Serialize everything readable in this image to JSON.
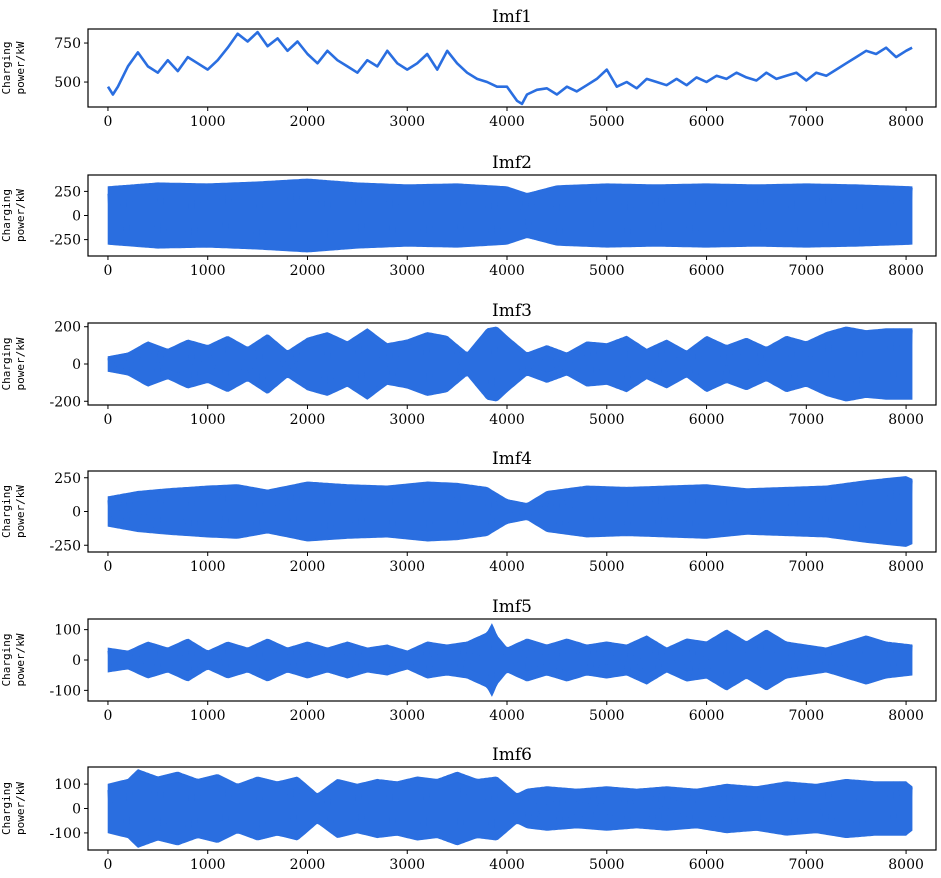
{
  "figure": {
    "line_color": "#2a6ee0"
  },
  "chart_data": [
    {
      "type": "line",
      "title": "Imf1",
      "ylabel_lines": [
        "Charging",
        "power/kW"
      ],
      "xlim": [
        -200,
        8300
      ],
      "ylim": [
        340,
        840
      ],
      "xticks": [
        0,
        1000,
        2000,
        3000,
        4000,
        5000,
        6000,
        7000,
        8000
      ],
      "yticks": [
        500,
        750
      ],
      "series": [
        {
          "x": [
            0,
            50,
            100,
            200,
            300,
            400,
            500,
            600,
            700,
            800,
            900,
            1000,
            1100,
            1200,
            1300,
            1400,
            1500,
            1600,
            1700,
            1800,
            1900,
            2000,
            2100,
            2200,
            2300,
            2400,
            2500,
            2600,
            2700,
            2800,
            2900,
            3000,
            3100,
            3200,
            3300,
            3400,
            3500,
            3600,
            3700,
            3800,
            3900,
            4000,
            4100,
            4150,
            4200,
            4300,
            4400,
            4500,
            4600,
            4700,
            4800,
            4900,
            5000,
            5100,
            5200,
            5300,
            5400,
            5500,
            5600,
            5700,
            5800,
            5900,
            6000,
            6100,
            6200,
            6300,
            6400,
            6500,
            6600,
            6700,
            6800,
            6900,
            7000,
            7100,
            7200,
            7300,
            7400,
            7500,
            7600,
            7700,
            7800,
            7900,
            8000,
            8060
          ],
          "y": [
            470,
            420,
            470,
            600,
            690,
            600,
            560,
            640,
            570,
            660,
            620,
            580,
            640,
            720,
            810,
            760,
            820,
            730,
            780,
            700,
            760,
            680,
            620,
            700,
            640,
            600,
            560,
            640,
            600,
            700,
            620,
            580,
            620,
            680,
            580,
            700,
            620,
            560,
            520,
            500,
            470,
            470,
            380,
            360,
            420,
            450,
            460,
            420,
            470,
            440,
            480,
            520,
            580,
            470,
            500,
            460,
            520,
            500,
            480,
            520,
            480,
            530,
            500,
            540,
            520,
            560,
            530,
            510,
            560,
            520,
            540,
            560,
            510,
            560,
            540,
            580,
            620,
            660,
            700,
            680,
            720,
            660,
            700,
            720
          ]
        }
      ]
    },
    {
      "type": "line",
      "title": "Imf2",
      "ylabel_lines": [
        "Charging",
        "power/kW"
      ],
      "xlim": [
        -200,
        8300
      ],
      "ylim": [
        -420,
        420
      ],
      "xticks": [
        0,
        1000,
        2000,
        3000,
        4000,
        5000,
        6000,
        7000,
        8000
      ],
      "yticks": [
        -250,
        0,
        250
      ],
      "series": [
        {
          "envelope": {
            "x": [
              0,
              500,
              1000,
              1500,
              2000,
              2500,
              3000,
              3500,
              4000,
              4200,
              4500,
              5000,
              5500,
              6000,
              6500,
              7000,
              7500,
              8060
            ],
            "amp": [
              300,
              340,
              330,
              350,
              380,
              340,
              320,
              330,
              300,
              230,
              310,
              330,
              320,
              330,
              320,
              330,
              320,
              300
            ]
          }
        }
      ]
    },
    {
      "type": "line",
      "title": "Imf3",
      "ylabel_lines": [
        "Charging",
        "power/kW"
      ],
      "xlim": [
        -200,
        8300
      ],
      "ylim": [
        -220,
        220
      ],
      "xticks": [
        0,
        1000,
        2000,
        3000,
        4000,
        5000,
        6000,
        7000,
        8000
      ],
      "yticks": [
        -200,
        0,
        200
      ],
      "series": [
        {
          "envelope": {
            "x": [
              0,
              200,
              400,
              600,
              800,
              1000,
              1200,
              1400,
              1600,
              1800,
              2000,
              2200,
              2400,
              2600,
              2800,
              3000,
              3200,
              3400,
              3600,
              3800,
              3900,
              4000,
              4200,
              4400,
              4600,
              4800,
              5000,
              5200,
              5400,
              5600,
              5800,
              6000,
              6200,
              6400,
              6600,
              6800,
              7000,
              7200,
              7400,
              7600,
              7800,
              8060
            ],
            "amp": [
              40,
              60,
              120,
              80,
              130,
              100,
              150,
              90,
              160,
              70,
              140,
              170,
              120,
              190,
              110,
              130,
              170,
              150,
              60,
              190,
              200,
              150,
              60,
              100,
              60,
              120,
              110,
              150,
              80,
              130,
              70,
              150,
              100,
              140,
              90,
              150,
              120,
              170,
              200,
              180,
              190,
              190
            ]
          }
        }
      ]
    },
    {
      "type": "line",
      "title": "Imf4",
      "ylabel_lines": [
        "Charging",
        "power/kW"
      ],
      "xlim": [
        -200,
        8300
      ],
      "ylim": [
        -300,
        300
      ],
      "xticks": [
        0,
        1000,
        2000,
        3000,
        4000,
        5000,
        6000,
        7000,
        8000
      ],
      "yticks": [
        -250,
        0,
        250
      ],
      "series": [
        {
          "envelope": {
            "x": [
              0,
              300,
              600,
              1000,
              1300,
              1600,
              2000,
              2400,
              2800,
              3200,
              3500,
              3800,
              4000,
              4200,
              4400,
              4800,
              5200,
              5600,
              6000,
              6400,
              6800,
              7200,
              7600,
              8000,
              8060
            ],
            "amp": [
              110,
              150,
              170,
              190,
              200,
              160,
              220,
              200,
              190,
              220,
              210,
              180,
              90,
              60,
              150,
              190,
              180,
              190,
              200,
              170,
              180,
              190,
              230,
              260,
              240
            ]
          }
        }
      ]
    },
    {
      "type": "line",
      "title": "Imf5",
      "ylabel_lines": [
        "Charging",
        "power/kW"
      ],
      "xlim": [
        -200,
        8300
      ],
      "ylim": [
        -135,
        135
      ],
      "xticks": [
        0,
        1000,
        2000,
        3000,
        4000,
        5000,
        6000,
        7000,
        8000
      ],
      "yticks": [
        -100,
        0,
        100
      ],
      "series": [
        {
          "envelope": {
            "x": [
              0,
              200,
              400,
              600,
              800,
              1000,
              1200,
              1400,
              1600,
              1800,
              2000,
              2200,
              2400,
              2600,
              2800,
              3000,
              3200,
              3400,
              3600,
              3800,
              3850,
              3900,
              4000,
              4200,
              4400,
              4600,
              4800,
              5000,
              5200,
              5400,
              5600,
              5800,
              6000,
              6200,
              6400,
              6600,
              6800,
              7000,
              7200,
              7400,
              7600,
              7800,
              8060
            ],
            "amp": [
              40,
              30,
              60,
              40,
              70,
              30,
              60,
              40,
              70,
              40,
              60,
              40,
              60,
              40,
              50,
              30,
              60,
              50,
              60,
              90,
              120,
              80,
              40,
              70,
              50,
              70,
              50,
              60,
              50,
              80,
              40,
              70,
              60,
              100,
              60,
              100,
              60,
              50,
              40,
              60,
              80,
              60,
              50
            ]
          }
        }
      ]
    },
    {
      "type": "line",
      "title": "Imf6",
      "ylabel_lines": [
        "Charging",
        "power/kW"
      ],
      "xlim": [
        -200,
        8300
      ],
      "ylim": [
        -170,
        170
      ],
      "xticks": [
        0,
        1000,
        2000,
        3000,
        4000,
        5000,
        6000,
        7000,
        8000
      ],
      "yticks": [
        -100,
        0,
        100
      ],
      "series": [
        {
          "envelope": {
            "x": [
              0,
              200,
              300,
              500,
              700,
              900,
              1100,
              1300,
              1500,
              1700,
              1900,
              2100,
              2300,
              2500,
              2700,
              2900,
              3100,
              3300,
              3500,
              3700,
              3900,
              4100,
              4200,
              4400,
              4700,
              5000,
              5300,
              5600,
              5900,
              6200,
              6500,
              6800,
              7100,
              7400,
              7700,
              8000,
              8060
            ],
            "amp": [
              100,
              120,
              160,
              130,
              150,
              120,
              140,
              100,
              130,
              110,
              130,
              60,
              120,
              100,
              120,
              110,
              130,
              120,
              150,
              120,
              130,
              60,
              80,
              90,
              80,
              90,
              80,
              90,
              80,
              100,
              90,
              110,
              100,
              120,
              110,
              110,
              90
            ]
          }
        }
      ]
    }
  ]
}
